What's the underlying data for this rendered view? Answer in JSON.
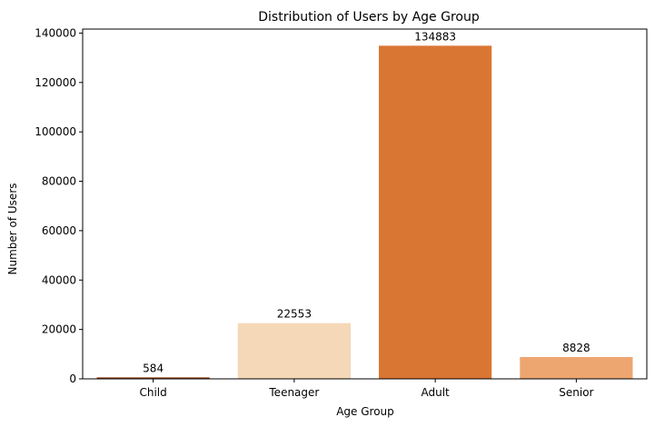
{
  "chart_data": {
    "type": "bar",
    "title": "Distribution of Users by Age Group",
    "xlabel": "Age Group",
    "ylabel": "Number of Users",
    "categories": [
      "Child",
      "Teenager",
      "Adult",
      "Senior"
    ],
    "values": [
      584,
      22553,
      134883,
      8828
    ],
    "data_labels": [
      "584",
      "22553",
      "134883",
      "8828"
    ],
    "ylim": [
      0,
      141627
    ],
    "yticks": [
      0,
      20000,
      40000,
      60000,
      80000,
      100000,
      120000,
      140000
    ],
    "ytick_labels": [
      "0",
      "20000",
      "40000",
      "60000",
      "80000",
      "100000",
      "120000",
      "140000"
    ],
    "colors": [
      "#8c3a0c",
      "#f5d8b7",
      "#d97634",
      "#eda66f"
    ],
    "grid": false,
    "legend": "none"
  }
}
